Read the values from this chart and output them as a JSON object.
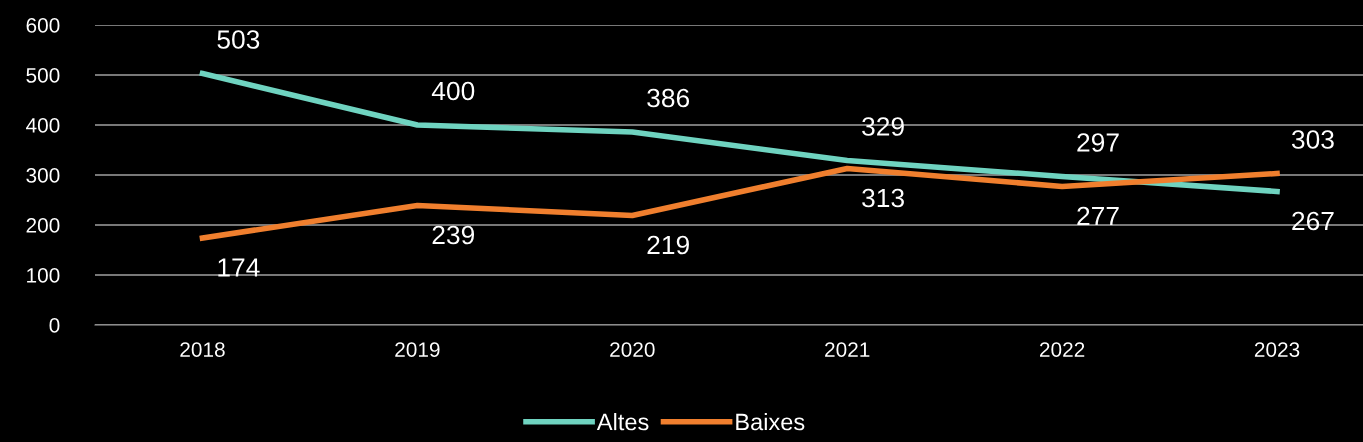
{
  "chart_data": {
    "type": "line",
    "categories": [
      "2018",
      "2019",
      "2020",
      "2021",
      "2022",
      "2023"
    ],
    "series": [
      {
        "name": "Altes",
        "color": "#6fd3c0",
        "values": [
          503,
          400,
          386,
          329,
          297,
          267
        ]
      },
      {
        "name": "Baixes",
        "color": "#f07f2e",
        "values": [
          174,
          239,
          219,
          313,
          277,
          303
        ]
      }
    ],
    "ylim": [
      0,
      600
    ],
    "yticks": [
      0,
      100,
      200,
      300,
      400,
      500,
      600
    ],
    "grid": "y",
    "legend": "bottom",
    "data_labels": true,
    "marker": "none",
    "line_style": "solid"
  }
}
